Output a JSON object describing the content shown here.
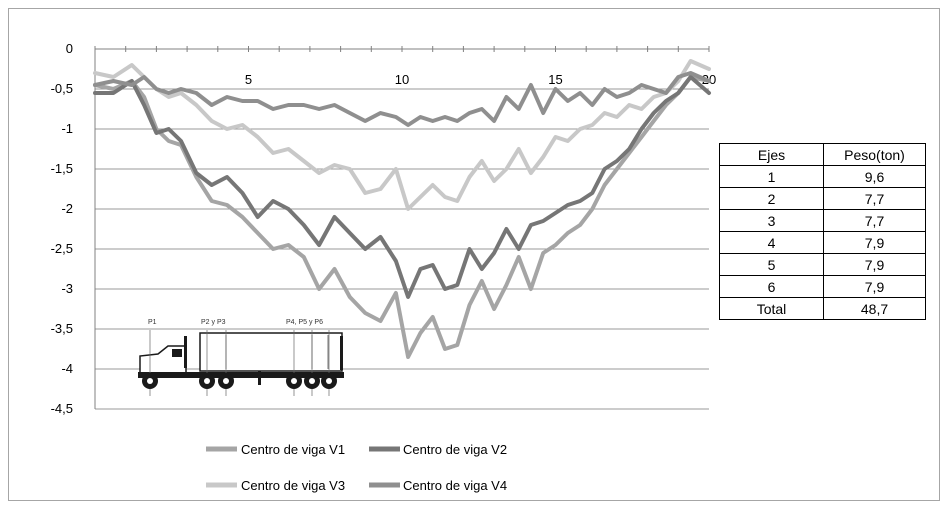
{
  "chart_data": {
    "type": "line",
    "title": "",
    "xlabel": "",
    "ylabel": "",
    "xlim": [
      0,
      20
    ],
    "ylim": [
      -4.5,
      0
    ],
    "x_ticks": [
      "5",
      "10",
      "15",
      "20"
    ],
    "y_ticks": [
      "0",
      "-0,5",
      "-1",
      "-1,5",
      "-2",
      "-2,5",
      "-3",
      "-3,5",
      "-4",
      "-4,5"
    ],
    "grid": "horizontal",
    "legend_position": "bottom",
    "series": [
      {
        "name": "Centro de viga V1",
        "color": "#a5a5a5",
        "x": [
          0,
          0.6,
          1.2,
          1.6,
          2.0,
          2.4,
          2.8,
          3.3,
          3.8,
          4.3,
          4.8,
          5.3,
          5.8,
          6.3,
          6.8,
          7.3,
          7.8,
          8.3,
          8.8,
          9.3,
          9.8,
          10.2,
          10.6,
          11.0,
          11.4,
          11.8,
          12.2,
          12.6,
          13.0,
          13.4,
          13.8,
          14.2,
          14.6,
          15.0,
          15.4,
          15.8,
          16.2,
          16.6,
          17.0,
          17.4,
          17.8,
          18.2,
          18.6,
          19.0,
          19.4,
          20.0
        ],
        "y": [
          -0.45,
          -0.5,
          -0.4,
          -0.6,
          -1.0,
          -1.15,
          -1.2,
          -1.6,
          -1.9,
          -1.95,
          -2.1,
          -2.3,
          -2.5,
          -2.45,
          -2.6,
          -3.0,
          -2.75,
          -3.1,
          -3.3,
          -3.4,
          -3.05,
          -3.85,
          -3.55,
          -3.35,
          -3.75,
          -3.7,
          -3.2,
          -2.9,
          -3.25,
          -2.95,
          -2.6,
          -3.0,
          -2.55,
          -2.45,
          -2.3,
          -2.2,
          -2.0,
          -1.7,
          -1.5,
          -1.3,
          -1.1,
          -0.9,
          -0.7,
          -0.55,
          -0.35,
          -0.4
        ]
      },
      {
        "name": "Centro de viga V2",
        "color": "#767676",
        "x": [
          0,
          0.6,
          1.2,
          1.6,
          2.0,
          2.4,
          2.8,
          3.3,
          3.8,
          4.3,
          4.8,
          5.3,
          5.8,
          6.3,
          6.8,
          7.3,
          7.8,
          8.3,
          8.8,
          9.3,
          9.8,
          10.2,
          10.6,
          11.0,
          11.4,
          11.8,
          12.2,
          12.6,
          13.0,
          13.4,
          13.8,
          14.2,
          14.6,
          15.0,
          15.4,
          15.8,
          16.2,
          16.6,
          17.0,
          17.4,
          17.8,
          18.2,
          18.6,
          19.0,
          19.4,
          20.0
        ],
        "y": [
          -0.55,
          -0.55,
          -0.4,
          -0.7,
          -1.05,
          -1.0,
          -1.15,
          -1.55,
          -1.7,
          -1.6,
          -1.8,
          -2.1,
          -1.9,
          -2.0,
          -2.2,
          -2.45,
          -2.1,
          -2.3,
          -2.5,
          -2.35,
          -2.65,
          -3.1,
          -2.75,
          -2.7,
          -3.0,
          -2.95,
          -2.5,
          -2.75,
          -2.55,
          -2.25,
          -2.5,
          -2.2,
          -2.15,
          -2.05,
          -1.95,
          -1.9,
          -1.8,
          -1.5,
          -1.4,
          -1.25,
          -1.0,
          -0.8,
          -0.65,
          -0.55,
          -0.35,
          -0.55
        ]
      },
      {
        "name": "Centro de viga V3",
        "color": "#c8c8c8",
        "x": [
          0,
          0.6,
          1.2,
          1.6,
          2.0,
          2.4,
          2.8,
          3.3,
          3.8,
          4.3,
          4.8,
          5.3,
          5.8,
          6.3,
          6.8,
          7.3,
          7.8,
          8.3,
          8.8,
          9.3,
          9.8,
          10.2,
          10.6,
          11.0,
          11.4,
          11.8,
          12.2,
          12.6,
          13.0,
          13.4,
          13.8,
          14.2,
          14.6,
          15.0,
          15.4,
          15.8,
          16.2,
          16.6,
          17.0,
          17.4,
          17.8,
          18.2,
          18.6,
          19.0,
          19.4,
          20.0
        ],
        "y": [
          -0.3,
          -0.35,
          -0.2,
          -0.35,
          -0.5,
          -0.6,
          -0.55,
          -0.7,
          -0.9,
          -1.0,
          -0.95,
          -1.1,
          -1.3,
          -1.25,
          -1.4,
          -1.55,
          -1.45,
          -1.5,
          -1.8,
          -1.75,
          -1.5,
          -2.0,
          -1.85,
          -1.7,
          -1.85,
          -1.9,
          -1.6,
          -1.4,
          -1.65,
          -1.5,
          -1.25,
          -1.55,
          -1.35,
          -1.1,
          -1.15,
          -1.0,
          -0.95,
          -0.8,
          -0.85,
          -0.7,
          -0.75,
          -0.6,
          -0.55,
          -0.4,
          -0.15,
          -0.25
        ]
      },
      {
        "name": "Centro de viga V4",
        "color": "#8f8f8f",
        "x": [
          0,
          0.6,
          1.2,
          1.6,
          2.0,
          2.4,
          2.8,
          3.3,
          3.8,
          4.3,
          4.8,
          5.3,
          5.8,
          6.3,
          6.8,
          7.3,
          7.8,
          8.3,
          8.8,
          9.3,
          9.8,
          10.2,
          10.6,
          11.0,
          11.4,
          11.8,
          12.2,
          12.6,
          13.0,
          13.4,
          13.8,
          14.2,
          14.6,
          15.0,
          15.4,
          15.8,
          16.2,
          16.6,
          17.0,
          17.4,
          17.8,
          18.2,
          18.6,
          19.0,
          19.4,
          20.0
        ],
        "y": [
          -0.45,
          -0.4,
          -0.45,
          -0.35,
          -0.5,
          -0.55,
          -0.5,
          -0.55,
          -0.7,
          -0.6,
          -0.65,
          -0.65,
          -0.75,
          -0.7,
          -0.7,
          -0.75,
          -0.7,
          -0.8,
          -0.9,
          -0.8,
          -0.85,
          -0.95,
          -0.85,
          -0.9,
          -0.85,
          -0.9,
          -0.8,
          -0.75,
          -0.9,
          -0.6,
          -0.75,
          -0.45,
          -0.8,
          -0.5,
          -0.65,
          -0.55,
          -0.7,
          -0.5,
          -0.6,
          -0.55,
          -0.45,
          -0.5,
          -0.55,
          -0.35,
          -0.3,
          -0.4
        ]
      }
    ]
  },
  "axle_table": {
    "headers": [
      "Ejes",
      "Peso(ton)"
    ],
    "rows": [
      [
        "1",
        "9,6"
      ],
      [
        "2",
        "7,7"
      ],
      [
        "3",
        "7,7"
      ],
      [
        "4",
        "7,9"
      ],
      [
        "5",
        "7,9"
      ],
      [
        "6",
        "7,9"
      ]
    ],
    "total_label": "Total",
    "total_value": "48,7"
  },
  "truck_figure": {
    "labels": [
      "P1",
      "P2 y P3",
      "P4, P5 y P6"
    ],
    "colors": {
      "dark": "#1a1a1a",
      "body": "#ffffff"
    }
  }
}
